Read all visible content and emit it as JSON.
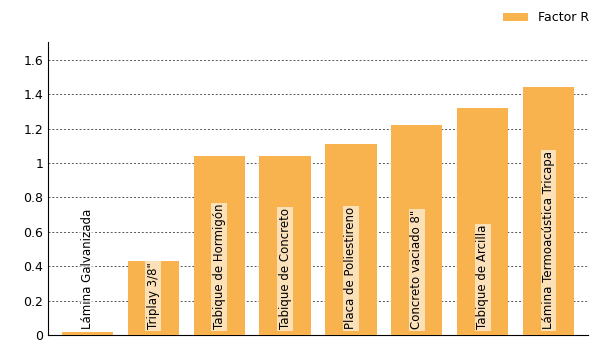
{
  "chart_data": {
    "type": "bar",
    "categories": [
      "Lámina Galvanizada",
      "Triplay 3/8\"",
      "Tabique de Hormigón",
      "Tabique de Concreto",
      "Placa de Poliestireno",
      "Concreto vaciado 8\"",
      "Tabique de Arcilla",
      "Lámina Termoacústica Tricapa"
    ],
    "series": [
      {
        "name": "Factor R",
        "color": "#f8b34f",
        "values": [
          0.02,
          0.43,
          1.04,
          1.04,
          1.11,
          1.22,
          1.32,
          1.44
        ]
      }
    ],
    "ylim": [
      0,
      1.7
    ],
    "yticks": [
      0,
      0.2,
      0.4,
      0.6,
      0.8,
      1,
      1.2,
      1.4,
      1.6
    ],
    "grid": true,
    "legend": "upper right",
    "tick_labels": "y"
  }
}
